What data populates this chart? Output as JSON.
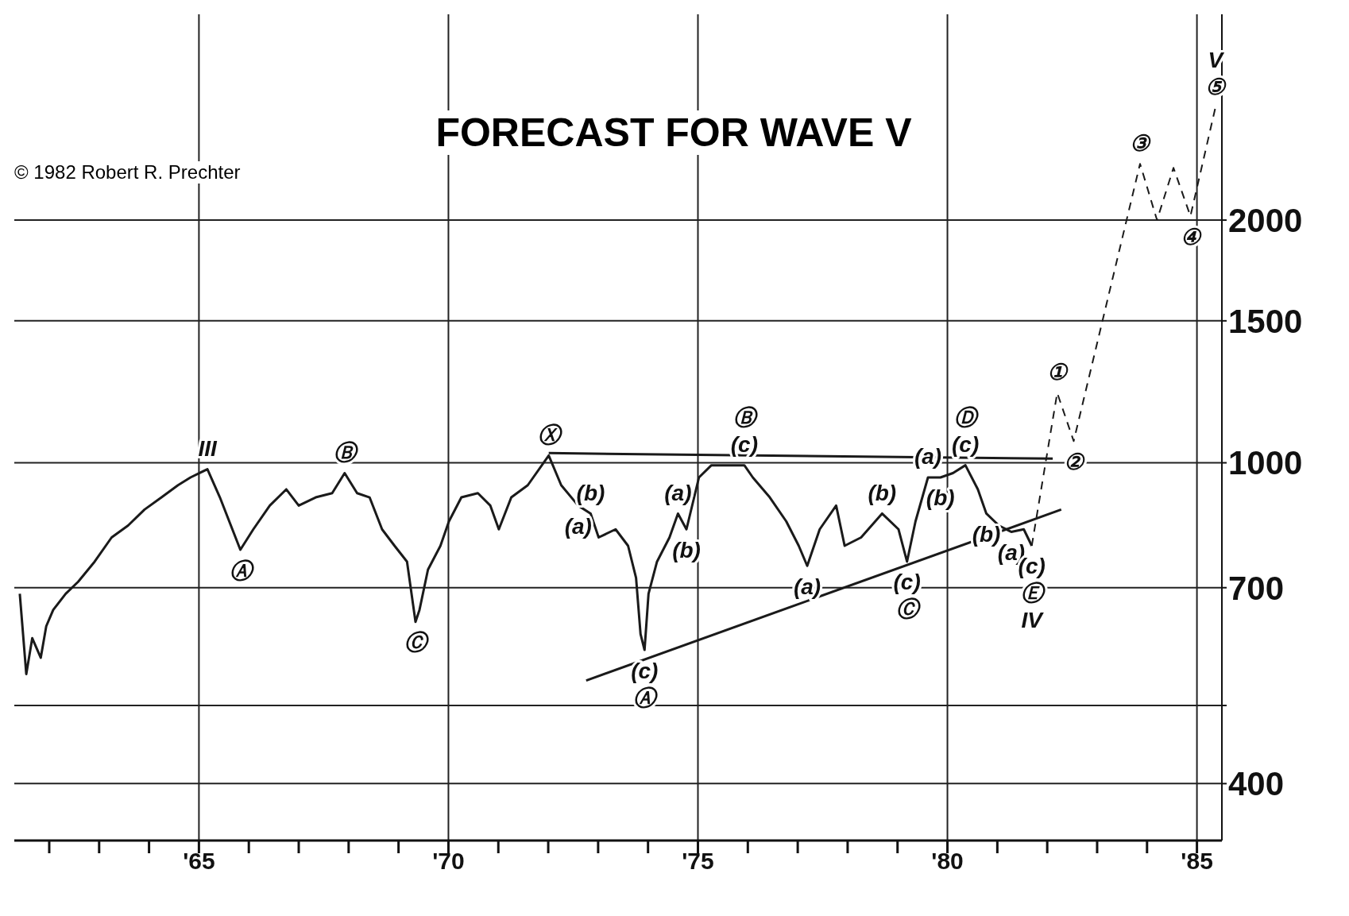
{
  "chart_data": {
    "type": "line",
    "title": "FORECAST FOR WAVE V",
    "log": true,
    "grid": true,
    "marker": "none",
    "ylim": [
      340,
      3600
    ],
    "yticks": [
      400,
      {
        "value": 500,
        "label": null
      },
      700,
      1000,
      1500,
      2000
    ],
    "xlim": [
      1961.3,
      1985.5
    ],
    "xticks": [
      {
        "value": 1962,
        "label": null
      },
      {
        "value": 1963,
        "label": null
      },
      {
        "value": 1964,
        "label": null
      },
      {
        "value": 1965,
        "label": "'65"
      },
      {
        "value": 1966,
        "label": null
      },
      {
        "value": 1967,
        "label": null
      },
      {
        "value": 1968,
        "label": null
      },
      {
        "value": 1969,
        "label": null
      },
      {
        "value": 1970,
        "label": "'70"
      },
      {
        "value": 1971,
        "label": null
      },
      {
        "value": 1972,
        "label": null
      },
      {
        "value": 1973,
        "label": null
      },
      {
        "value": 1974,
        "label": null
      },
      {
        "value": 1975,
        "label": "'75"
      },
      {
        "value": 1976,
        "label": null
      },
      {
        "value": 1977,
        "label": null
      },
      {
        "value": 1978,
        "label": null
      },
      {
        "value": 1979,
        "label": null
      },
      {
        "value": 1980,
        "label": "'80"
      },
      {
        "value": 1981,
        "label": null
      },
      {
        "value": 1982,
        "label": null
      },
      {
        "value": 1983,
        "label": null
      },
      {
        "value": 1984,
        "label": null
      },
      {
        "value": 1985,
        "label": "'85"
      }
    ],
    "series": [
      {
        "color": "#1a1a1a",
        "line_style": "solid",
        "x": [
          1961.41,
          1961.54,
          1961.66,
          1961.83,
          1961.94,
          1962.08,
          1962.33,
          1962.58,
          1962.91,
          1963.25,
          1963.58,
          1963.91,
          1964.25,
          1964.58,
          1964.83,
          1965.17,
          1965.42,
          1965.67,
          1965.83,
          1966.09,
          1966.42,
          1966.75,
          1967.0,
          1967.34,
          1967.67,
          1967.92,
          1968.17,
          1968.42,
          1968.67,
          1968.92,
          1969.17,
          1969.34,
          1969.42,
          1969.59,
          1969.84,
          1970.01,
          1970.26,
          1970.59,
          1970.84,
          1971.01,
          1971.26,
          1971.59,
          1972.01,
          1972.26,
          1972.6,
          1972.85,
          1973.01,
          1973.35,
          1973.6,
          1973.76,
          1973.85,
          1973.93,
          1974.01,
          1974.18,
          1974.43,
          1974.6,
          1974.77,
          1975.02,
          1975.27,
          1975.6,
          1975.93,
          1976.1,
          1976.44,
          1976.77,
          1977.02,
          1977.19,
          1977.44,
          1977.77,
          1977.94,
          1978.27,
          1978.69,
          1979.02,
          1979.19,
          1979.36,
          1979.61,
          1979.86,
          1980.11,
          1980.36,
          1980.61,
          1980.78,
          1981.03,
          1981.28,
          1981.53,
          1981.69
        ],
        "values": [
          688,
          547,
          606,
          573,
          627,
          657,
          688,
          712,
          754,
          808,
          836,
          875,
          906,
          938,
          959,
          982,
          906,
          827,
          780,
          827,
          885,
          927,
          885,
          906,
          917,
          971,
          917,
          906,
          827,
          789,
          754,
          635,
          657,
          737,
          789,
          846,
          906,
          917,
          885,
          827,
          906,
          938,
          1021,
          938,
          885,
          865,
          808,
          827,
          789,
          720,
          613,
          586,
          688,
          754,
          808,
          865,
          827,
          959,
          993,
          993,
          993,
          959,
          906,
          846,
          789,
          745,
          827,
          885,
          789,
          808,
          865,
          827,
          754,
          846,
          959,
          959,
          971,
          993,
          927,
          865,
          836,
          821,
          827,
          789
        ]
      },
      {
        "color": "#1a1a1a",
        "line_style": "dashed",
        "x": [
          1981.69,
          1982.2,
          1982.53,
          1983.86,
          1984.2,
          1984.53,
          1984.87,
          1985.37
        ],
        "values": [
          789,
          1221,
          1064,
          2349,
          2000,
          2322,
          2023,
          2758
        ]
      },
      {
        "color": "#1a1a1a",
        "line_style": "solid",
        "x": [
          1972.76,
          1982.28
        ],
        "values": [
          537,
          875
        ]
      },
      {
        "color": "#1a1a1a",
        "line_style": "solid",
        "x": [
          1972.01,
          1982.11
        ],
        "values": [
          1028,
          1012
        ]
      }
    ],
    "annotations": [
      "© 1982 Robert R. Prechter",
      {
        "text": "III",
        "x": 1965.17,
        "y": 982
      },
      {
        "text": "Ⓐ",
        "x": 1965.83,
        "y": 780
      },
      {
        "text": "Ⓑ",
        "x": 1967.92,
        "y": 971
      },
      {
        "text": "Ⓒ",
        "x": 1969.34,
        "y": 635
      },
      {
        "text": "Ⓧ",
        "x": 1972.01,
        "y": 1021
      },
      {
        "text": "(b)",
        "x": 1972.85,
        "y": 865
      },
      {
        "text": "(a)",
        "x": 1972.6,
        "y": 885
      },
      {
        "text": "(c)",
        "x": 1973.93,
        "y": 586
      },
      {
        "text": "Ⓐ",
        "x": 1973.93,
        "y": 586
      },
      {
        "text": "(a)",
        "x": 1974.6,
        "y": 865
      },
      {
        "text": "(b)",
        "x": 1974.77,
        "y": 827
      },
      {
        "text": "(c)",
        "x": 1975.93,
        "y": 993
      },
      {
        "text": "Ⓑ",
        "x": 1975.93,
        "y": 993
      },
      {
        "text": "(a)",
        "x": 1977.19,
        "y": 745
      },
      {
        "text": "(b)",
        "x": 1978.69,
        "y": 865
      },
      {
        "text": "(c)",
        "x": 1979.19,
        "y": 754
      },
      {
        "text": "Ⓒ",
        "x": 1979.19,
        "y": 754
      },
      {
        "text": "(a)",
        "x": 1979.61,
        "y": 959
      },
      {
        "text": "(b)",
        "x": 1979.86,
        "y": 959
      },
      {
        "text": "(c)",
        "x": 1980.36,
        "y": 993
      },
      {
        "text": "Ⓓ",
        "x": 1980.36,
        "y": 993
      },
      {
        "text": "(b)",
        "x": 1980.78,
        "y": 865
      },
      {
        "text": "(a)",
        "x": 1981.28,
        "y": 821
      },
      {
        "text": "(c)",
        "x": 1981.69,
        "y": 789
      },
      {
        "text": "Ⓔ",
        "x": 1981.69,
        "y": 789
      },
      {
        "text": "IV",
        "x": 1981.69,
        "y": 789
      },
      {
        "text": "①",
        "x": 1982.2,
        "y": 1221
      },
      {
        "text": "②",
        "x": 1982.53,
        "y": 1064
      },
      {
        "text": "③",
        "x": 1983.86,
        "y": 2349
      },
      {
        "text": "④",
        "x": 1984.87,
        "y": 2023
      },
      {
        "text": "⑤",
        "x": 1985.37,
        "y": 2758
      },
      {
        "text": "V",
        "x": 1985.37,
        "y": 2758
      }
    ]
  }
}
